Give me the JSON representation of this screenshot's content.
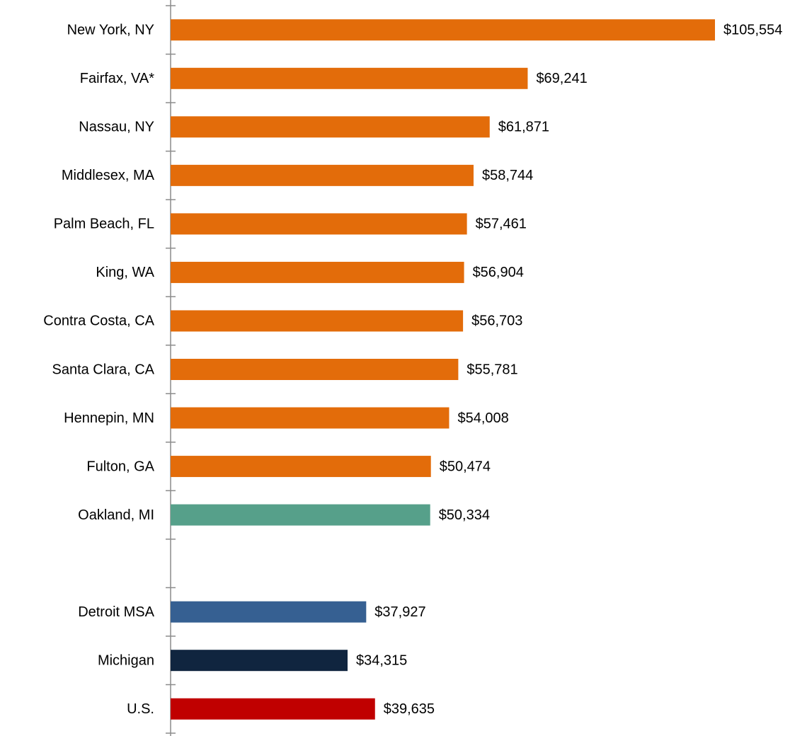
{
  "chart_data": {
    "type": "barh",
    "categories": [
      "New York, NY",
      "Fairfax, VA*",
      "Nassau, NY",
      "Middlesex, MA",
      "Palm Beach, FL",
      "King, WA",
      "Contra Costa, CA",
      "Santa Clara, CA",
      "Hennepin, MN",
      "Fulton, GA",
      "Oakland, MI",
      null,
      "Detroit MSA",
      "Michigan",
      "U.S."
    ],
    "values": [
      105554,
      69241,
      61871,
      58744,
      57461,
      56904,
      56703,
      55781,
      54008,
      50474,
      50334,
      null,
      37927,
      34315,
      39635
    ],
    "value_labels": [
      "$105,554",
      "$69,241",
      "$61,871",
      "$58,744",
      "$57,461",
      "$56,904",
      "$56,703",
      "$55,781",
      "$54,008",
      "$50,474",
      "$50,334",
      null,
      "$37,927",
      "$34,315",
      "$39,635"
    ],
    "colors": [
      "#e36c0a",
      "#e36c0a",
      "#e36c0a",
      "#e36c0a",
      "#e36c0a",
      "#e36c0a",
      "#e36c0a",
      "#e36c0a",
      "#e36c0a",
      "#e36c0a",
      "#56a08a",
      null,
      "#366092",
      "#10253f",
      "#c00000"
    ]
  }
}
